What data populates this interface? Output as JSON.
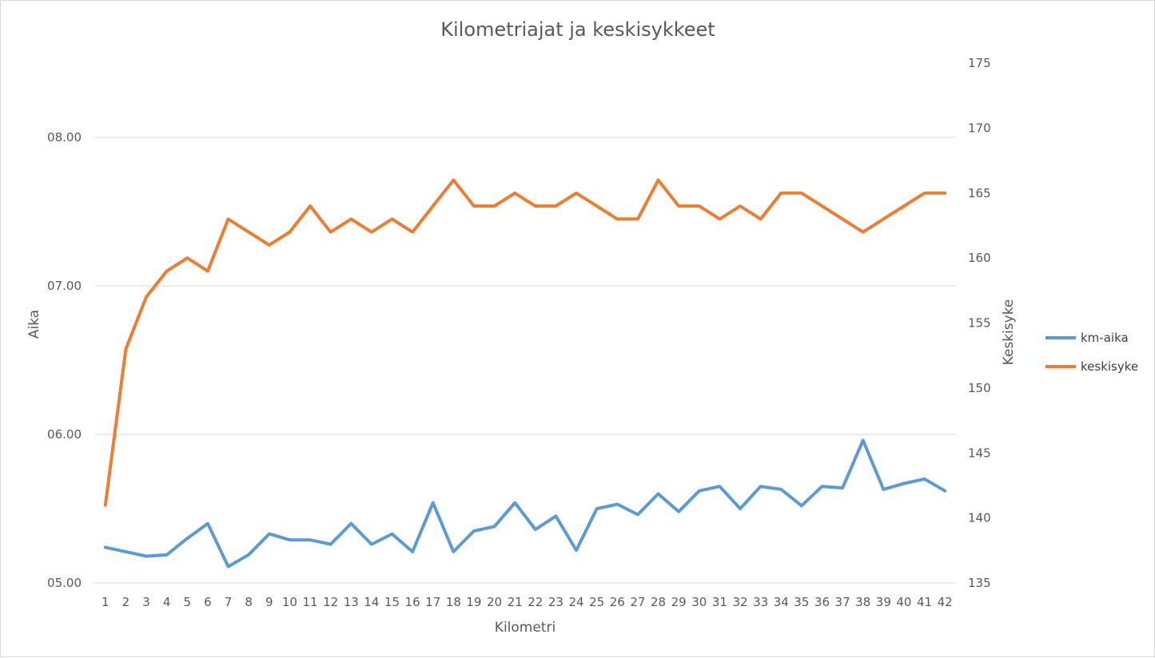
{
  "chart_data": {
    "type": "line",
    "title": "Kilometriajat ja keskisykkeet",
    "xlabel": "Kilometri",
    "ylabel": "Aika",
    "y2label": "Keskisyke",
    "x": [
      1,
      2,
      3,
      4,
      5,
      6,
      7,
      8,
      9,
      10,
      11,
      12,
      13,
      14,
      15,
      16,
      17,
      18,
      19,
      20,
      21,
      22,
      23,
      24,
      25,
      26,
      27,
      28,
      29,
      30,
      31,
      32,
      33,
      34,
      35,
      36,
      37,
      38,
      39,
      40,
      41,
      42
    ],
    "x_tick_labels": [
      "1",
      "2",
      "3",
      "4",
      "5",
      "6",
      "7",
      "8",
      "9",
      "10",
      "11",
      "12",
      "13",
      "14",
      "15",
      "16",
      "17",
      "18",
      "19",
      "20",
      "21",
      "22",
      "23",
      "24",
      "25",
      "26",
      "27",
      "28",
      "29",
      "30",
      "31",
      "32",
      "33",
      "34",
      "35",
      "36",
      "37",
      "38",
      "39",
      "40",
      "41",
      "42"
    ],
    "ylim": [
      5.0,
      8.5
    ],
    "y_ticks": [
      5.0,
      6.0,
      7.0,
      8.0
    ],
    "y_tick_labels": [
      "05.00",
      "06.00",
      "07.00",
      "08.00"
    ],
    "y2lim": [
      135,
      175
    ],
    "y2_ticks": [
      135,
      140,
      145,
      150,
      155,
      160,
      165,
      170,
      175
    ],
    "y2_tick_labels": [
      "135",
      "140",
      "145",
      "150",
      "155",
      "160",
      "165",
      "170",
      "175"
    ],
    "grid": true,
    "legend_position": "right",
    "series": [
      {
        "name": "km-aika",
        "axis": "left",
        "color": "#5b9bd5",
        "values": [
          5.24,
          5.21,
          5.18,
          5.19,
          5.3,
          5.4,
          5.11,
          5.19,
          5.33,
          5.29,
          5.29,
          5.26,
          5.4,
          5.26,
          5.33,
          5.21,
          5.54,
          5.21,
          5.35,
          5.38,
          5.54,
          5.36,
          5.45,
          5.22,
          5.5,
          5.53,
          5.46,
          5.6,
          5.48,
          5.62,
          5.65,
          5.5,
          5.65,
          5.63,
          5.52,
          5.65,
          5.64,
          5.96,
          5.63,
          5.67,
          5.7,
          5.62
        ]
      },
      {
        "name": "keskisyke",
        "axis": "right",
        "color": "#ed7d31",
        "values": [
          141,
          153,
          157,
          159,
          160,
          159,
          163,
          162,
          161,
          162,
          164,
          162,
          163,
          162,
          163,
          162,
          164,
          166,
          164,
          164,
          165,
          164,
          164,
          165,
          164,
          163,
          163,
          166,
          164,
          164,
          163,
          164,
          163,
          165,
          165,
          164,
          163,
          162,
          163,
          164,
          165,
          165
        ]
      }
    ]
  }
}
